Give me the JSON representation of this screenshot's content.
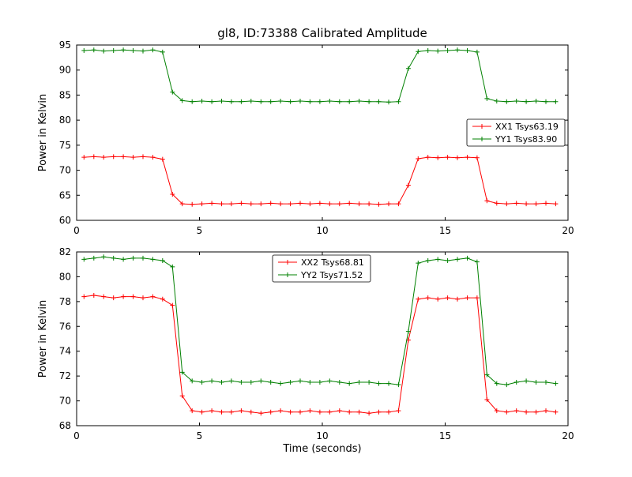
{
  "chart_data": [
    {
      "type": "line",
      "title": "gl8, ID:73388 Calibrated Amplitude",
      "xlabel": "",
      "ylabel": "Power in Kelvin",
      "xlim": [
        0,
        20
      ],
      "ylim": [
        60,
        95
      ],
      "xticks": [
        0,
        5,
        10,
        15,
        20
      ],
      "yticks": [
        60,
        65,
        70,
        75,
        80,
        85,
        90,
        95
      ],
      "grid": false,
      "legend_loc": "center right",
      "x": [
        0.3,
        0.7,
        1.1,
        1.5,
        1.9,
        2.3,
        2.7,
        3.1,
        3.5,
        3.9,
        4.3,
        4.7,
        5.1,
        5.5,
        5.9,
        6.3,
        6.7,
        7.1,
        7.5,
        7.9,
        8.3,
        8.7,
        9.1,
        9.5,
        9.9,
        10.3,
        10.7,
        11.1,
        11.5,
        11.9,
        12.3,
        12.7,
        13.1,
        13.5,
        13.9,
        14.3,
        14.7,
        15.1,
        15.5,
        15.9,
        16.3,
        16.7,
        17.1,
        17.5,
        17.9,
        18.3,
        18.7,
        19.1,
        19.5
      ],
      "series": [
        {
          "name": "XX1 Tsys63.19",
          "color": "#ff0000",
          "marker": "plus",
          "values": [
            72.6,
            72.7,
            72.6,
            72.7,
            72.7,
            72.6,
            72.7,
            72.6,
            72.2,
            65.2,
            63.3,
            63.2,
            63.3,
            63.4,
            63.3,
            63.3,
            63.4,
            63.3,
            63.3,
            63.4,
            63.3,
            63.3,
            63.4,
            63.3,
            63.4,
            63.3,
            63.3,
            63.4,
            63.3,
            63.3,
            63.2,
            63.3,
            63.3,
            67.0,
            72.3,
            72.6,
            72.5,
            72.6,
            72.5,
            72.6,
            72.5,
            63.9,
            63.4,
            63.3,
            63.4,
            63.3,
            63.3,
            63.4,
            63.3
          ]
        },
        {
          "name": "YY1 Tsys83.90",
          "color": "#008000",
          "marker": "plus",
          "values": [
            93.9,
            94.0,
            93.8,
            93.9,
            94.0,
            93.9,
            93.8,
            94.0,
            93.6,
            85.6,
            83.9,
            83.7,
            83.8,
            83.7,
            83.8,
            83.7,
            83.7,
            83.8,
            83.7,
            83.7,
            83.8,
            83.7,
            83.8,
            83.7,
            83.7,
            83.8,
            83.7,
            83.7,
            83.8,
            83.7,
            83.7,
            83.6,
            83.7,
            90.3,
            93.7,
            93.9,
            93.8,
            93.9,
            94.0,
            93.9,
            93.6,
            84.3,
            83.8,
            83.7,
            83.8,
            83.7,
            83.8,
            83.7,
            83.7
          ]
        }
      ]
    },
    {
      "type": "line",
      "title": "",
      "xlabel": "Time (seconds)",
      "ylabel": "Power in Kelvin",
      "xlim": [
        0,
        20
      ],
      "ylim": [
        68,
        82
      ],
      "xticks": [
        0,
        5,
        10,
        15,
        20
      ],
      "yticks": [
        68,
        70,
        72,
        74,
        76,
        78,
        80,
        82
      ],
      "grid": false,
      "legend_loc": "upper center",
      "x": [
        0.3,
        0.7,
        1.1,
        1.5,
        1.9,
        2.3,
        2.7,
        3.1,
        3.5,
        3.9,
        4.3,
        4.7,
        5.1,
        5.5,
        5.9,
        6.3,
        6.7,
        7.1,
        7.5,
        7.9,
        8.3,
        8.7,
        9.1,
        9.5,
        9.9,
        10.3,
        10.7,
        11.1,
        11.5,
        11.9,
        12.3,
        12.7,
        13.1,
        13.5,
        13.9,
        14.3,
        14.7,
        15.1,
        15.5,
        15.9,
        16.3,
        16.7,
        17.1,
        17.5,
        17.9,
        18.3,
        18.7,
        19.1,
        19.5
      ],
      "series": [
        {
          "name": "XX2 Tsys68.81",
          "color": "#ff0000",
          "marker": "plus",
          "values": [
            78.4,
            78.5,
            78.4,
            78.3,
            78.4,
            78.4,
            78.3,
            78.4,
            78.2,
            77.7,
            70.4,
            69.2,
            69.1,
            69.2,
            69.1,
            69.1,
            69.2,
            69.1,
            69.0,
            69.1,
            69.2,
            69.1,
            69.1,
            69.2,
            69.1,
            69.1,
            69.2,
            69.1,
            69.1,
            69.0,
            69.1,
            69.1,
            69.2,
            74.9,
            78.2,
            78.3,
            78.2,
            78.3,
            78.2,
            78.3,
            78.3,
            70.1,
            69.2,
            69.1,
            69.2,
            69.1,
            69.1,
            69.2,
            69.1
          ]
        },
        {
          "name": "YY2 Tsys71.52",
          "color": "#008000",
          "marker": "plus",
          "values": [
            81.4,
            81.5,
            81.6,
            81.5,
            81.4,
            81.5,
            81.5,
            81.4,
            81.3,
            80.8,
            72.3,
            71.6,
            71.5,
            71.6,
            71.5,
            71.6,
            71.5,
            71.5,
            71.6,
            71.5,
            71.4,
            71.5,
            71.6,
            71.5,
            71.5,
            71.6,
            71.5,
            71.4,
            71.5,
            71.5,
            71.4,
            71.4,
            71.3,
            75.6,
            81.1,
            81.3,
            81.4,
            81.3,
            81.4,
            81.5,
            81.2,
            72.1,
            71.4,
            71.3,
            71.5,
            71.6,
            71.5,
            71.5,
            71.4
          ]
        }
      ]
    }
  ]
}
